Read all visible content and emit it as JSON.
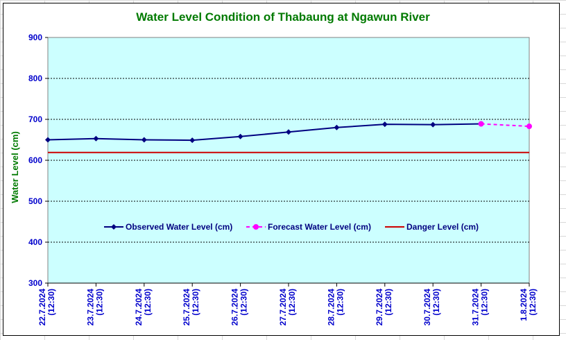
{
  "chart_data": {
    "type": "line",
    "title": "Water Level Condition of Thabaung at Ngawun River",
    "xlabel": "",
    "ylabel": "Water Level (cm)",
    "ylim": [
      300,
      900
    ],
    "yticks": [
      300,
      400,
      500,
      600,
      700,
      800,
      900
    ],
    "grid": true,
    "legend_position": "center",
    "plot_background": "#ccffff",
    "categories": [
      [
        "22.7.2024",
        "(12:30)"
      ],
      [
        "23.7.2024",
        "(12:30)"
      ],
      [
        "24.7.2024",
        "(12:30)"
      ],
      [
        "25.7.2024",
        "(12:30)"
      ],
      [
        "26.7.2024",
        "(12:30)"
      ],
      [
        "27.7.2024",
        "(12:30)"
      ],
      [
        "28.7.2024",
        "(12:30)"
      ],
      [
        "29.7.2024",
        "(12:30)"
      ],
      [
        "30.7.2024",
        "(12:30)"
      ],
      [
        "31.7.2024",
        "(12:30)"
      ],
      [
        "1.8.2024",
        "(12:30)"
      ]
    ],
    "series": [
      {
        "name": "Observed Water Level (cm)",
        "color": "#000080",
        "style": "solid",
        "marker": "diamond",
        "values": [
          650,
          653,
          650,
          649,
          658,
          669,
          680,
          688,
          687,
          689,
          null
        ]
      },
      {
        "name": "Forecast Water Level (cm)",
        "color": "#ff00ff",
        "style": "dashed",
        "marker": "circle",
        "values": [
          null,
          null,
          null,
          null,
          null,
          null,
          null,
          null,
          null,
          689,
          683
        ]
      },
      {
        "name": "Danger Level (cm)",
        "color": "#cc0000",
        "style": "solid",
        "marker": "none",
        "values": [
          619,
          619,
          619,
          619,
          619,
          619,
          619,
          619,
          619,
          619,
          619
        ]
      }
    ]
  }
}
